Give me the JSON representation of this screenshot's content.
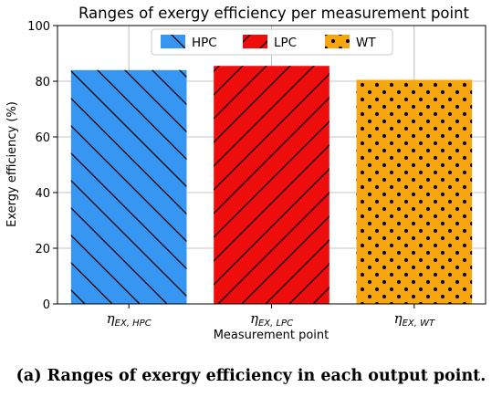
{
  "chart_data": {
    "type": "bar",
    "title": "Ranges of exergy efficiency per measurement point",
    "xlabel": "Measurement point",
    "ylabel": "Exergy efficiency (%)",
    "ylim": [
      0,
      100
    ],
    "yticks": [
      "0",
      "20",
      "40",
      "60",
      "80",
      "100"
    ],
    "categories": [
      {
        "base": "η",
        "sub": "EX, HPC"
      },
      {
        "base": "η",
        "sub": "EX, LPC"
      },
      {
        "base": "η",
        "sub": "EX, WT"
      }
    ],
    "series": [
      {
        "name": "HPC",
        "value": 84,
        "color": "#3796f2",
        "hatch": "diagonal-lines"
      },
      {
        "name": "LPC",
        "value": 85.5,
        "color": "#ee0d0d",
        "hatch": "crossed-diagonals"
      },
      {
        "name": "WT",
        "value": 80.5,
        "color": "#f7a70d",
        "hatch": "dots"
      }
    ],
    "grid": true,
    "legend_position": "top-center"
  },
  "caption": "(a) Ranges of exergy efficiency in each output point."
}
